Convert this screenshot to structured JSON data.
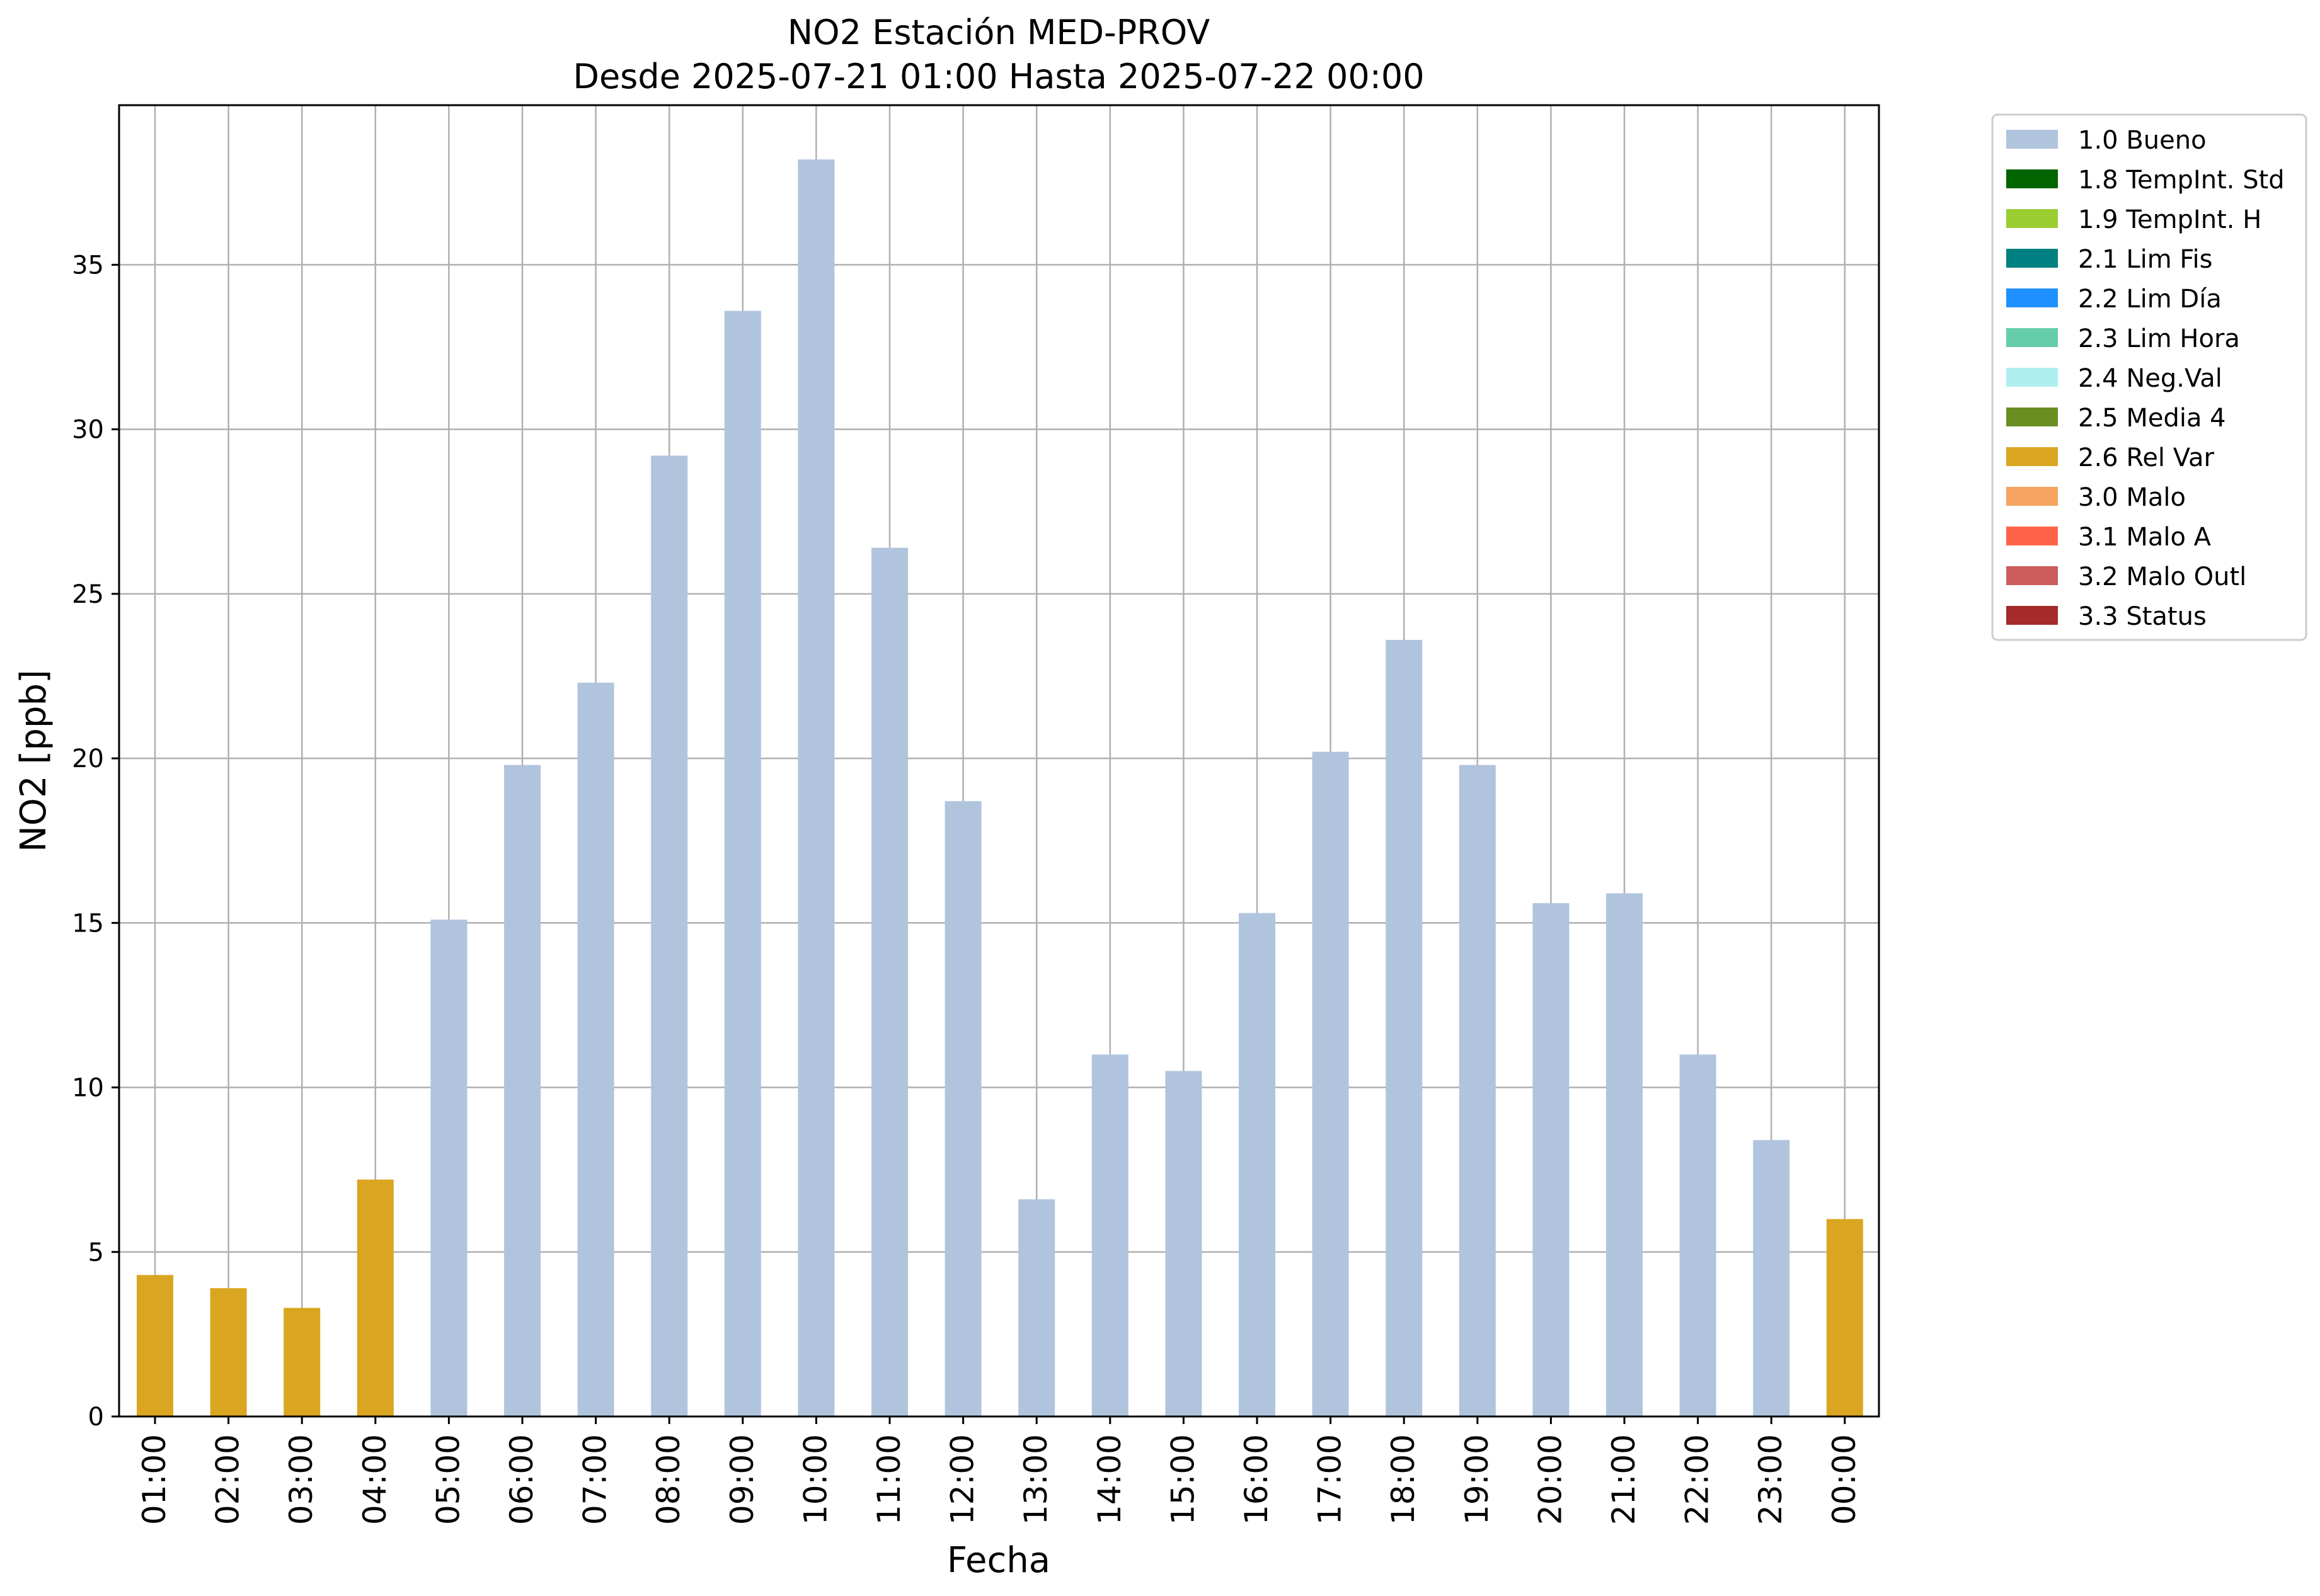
{
  "chart_data": {
    "type": "bar",
    "title": "NO2 Estación MED-PROV",
    "subtitle": "Desde 2025-07-21 01:00 Hasta 2025-07-22 00:00",
    "xlabel": "Fecha",
    "ylabel": "NO2 [ppb]",
    "ylim": [
      0,
      40
    ],
    "yticks": [
      0,
      5,
      10,
      15,
      20,
      25,
      30,
      35
    ],
    "grid": true,
    "legend_position": "outside-right-top",
    "categories": [
      "01:00",
      "02:00",
      "03:00",
      "04:00",
      "05:00",
      "06:00",
      "07:00",
      "08:00",
      "09:00",
      "10:00",
      "11:00",
      "12:00",
      "13:00",
      "14:00",
      "15:00",
      "16:00",
      "17:00",
      "18:00",
      "19:00",
      "20:00",
      "21:00",
      "22:00",
      "23:00",
      "00:00"
    ],
    "values": [
      4.3,
      3.9,
      3.3,
      7.2,
      15.1,
      19.8,
      22.3,
      29.2,
      33.6,
      38.2,
      26.4,
      18.7,
      6.6,
      11.0,
      10.5,
      15.3,
      20.2,
      23.6,
      19.8,
      15.6,
      15.9,
      11.0,
      8.4,
      6.0
    ],
    "flags": [
      "2.6 Rel Var",
      "2.6 Rel Var",
      "2.6 Rel Var",
      "2.6 Rel Var",
      "1.0 Bueno",
      "1.0 Bueno",
      "1.0 Bueno",
      "1.0 Bueno",
      "1.0 Bueno",
      "1.0 Bueno",
      "1.0 Bueno",
      "1.0 Bueno",
      "1.0 Bueno",
      "1.0 Bueno",
      "1.0 Bueno",
      "1.0 Bueno",
      "1.0 Bueno",
      "1.0 Bueno",
      "1.0 Bueno",
      "1.0 Bueno",
      "1.0 Bueno",
      "1.0 Bueno",
      "1.0 Bueno",
      "2.6 Rel Var"
    ],
    "legend": [
      {
        "label": "1.0 Bueno",
        "color": "#b0c4de"
      },
      {
        "label": "1.8 TempInt. Std",
        "color": "#006400"
      },
      {
        "label": "1.9 TempInt. H",
        "color": "#9acd32"
      },
      {
        "label": "2.1 Lim Fis",
        "color": "#008080"
      },
      {
        "label": "2.2 Lim Día",
        "color": "#1e90ff"
      },
      {
        "label": "2.3 Lim Hora",
        "color": "#66cdaa"
      },
      {
        "label": "2.4 Neg.Val",
        "color": "#afeeee"
      },
      {
        "label": "2.5 Media 4",
        "color": "#6b8e23"
      },
      {
        "label": "2.6 Rel Var",
        "color": "#daa520"
      },
      {
        "label": "3.0 Malo",
        "color": "#f4a460"
      },
      {
        "label": "3.1 Malo A",
        "color": "#ff6347"
      },
      {
        "label": "3.2 Malo Outl",
        "color": "#cd5c5c"
      },
      {
        "label": "3.3 Status",
        "color": "#a52a2a"
      }
    ]
  }
}
